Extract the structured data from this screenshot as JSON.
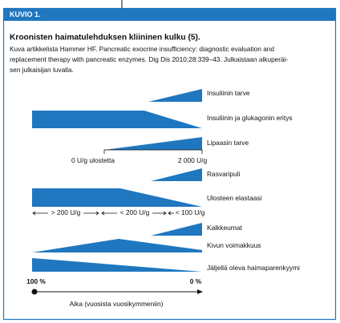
{
  "header": {
    "label": "KUVIO 1."
  },
  "title": "Kroonisten haimatulehduksen kliininen kulku (5).",
  "caption": [
    "Kuva artikkelista Hammer HF. Pancreatic exocrine insufficiency: diagnostic evaluation and",
    "replacement therapy with pancreatic enzymes. Dig Dis 2010;28:339–43. Julkaistaan alkuperäi-",
    "sen julkaisijan luvalla."
  ],
  "rows": [
    {
      "label": "Insuliinin tarve"
    },
    {
      "label": "Insuliinin ja glukagonin eritys"
    },
    {
      "label": "Lipaasin tarve"
    },
    {
      "label": "Rasvaripuli"
    },
    {
      "label": "Ulosteen elastaasi"
    },
    {
      "label": "Kalkkeumat"
    },
    {
      "label": "Kivun voimakkuus"
    },
    {
      "label": "Jäljellä oleva haimaparenkyymi"
    }
  ],
  "lipase_scale": {
    "start": "0 U/g ulostetta",
    "end": "2 000 U/g"
  },
  "elastase_levels": [
    "> 200 U/g",
    "< 200 U/g",
    "< 100 U/g"
  ],
  "axis": {
    "start": "100 %",
    "end": "0 %",
    "label": "Aika (vuosista vuosikymmeniin)"
  }
}
